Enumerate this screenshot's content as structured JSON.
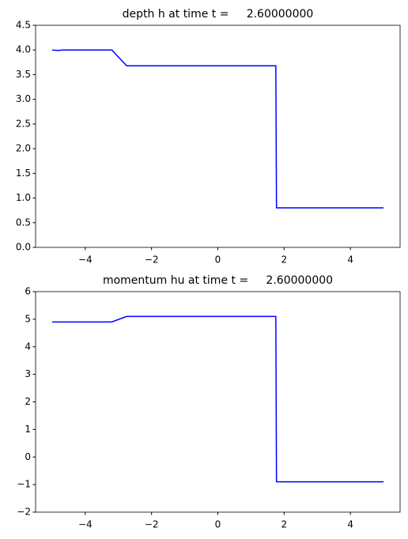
{
  "chart_data": [
    {
      "type": "line",
      "title": "depth h at time t =     2.60000000",
      "x": [
        -5,
        -4.8,
        -4.7,
        -3.2,
        -2.75,
        1.75,
        1.77,
        5
      ],
      "series": [
        {
          "color": "#0000ff",
          "values": [
            4.0,
            3.99,
            4.0,
            4.0,
            3.68,
            3.68,
            0.8,
            0.8
          ]
        }
      ],
      "xlim": [
        -5.5,
        5.5
      ],
      "xticks": [
        {
          "value": -4,
          "label": "−4"
        },
        {
          "value": -2,
          "label": "−2"
        },
        0,
        2,
        4
      ],
      "ylim": [
        0,
        4.5
      ],
      "yticks": [
        {
          "value": 0,
          "label": "0.0"
        },
        0.5,
        {
          "value": 1,
          "label": "1.0"
        },
        1.5,
        {
          "value": 2,
          "label": "2.0"
        },
        2.5,
        {
          "value": 3,
          "label": "3.0"
        },
        3.5,
        {
          "value": 4,
          "label": "4.0"
        },
        4.5
      ]
    },
    {
      "type": "line",
      "title": "momentum hu at time t =     2.60000000",
      "x": [
        -5,
        -4.8,
        -4.7,
        -3.2,
        -2.75,
        1.75,
        1.77,
        5
      ],
      "series": [
        {
          "color": "#0000ff",
          "values": [
            4.9,
            4.9,
            4.9,
            4.9,
            5.1,
            5.1,
            -0.9,
            -0.9
          ]
        }
      ],
      "xlim": [
        -5.5,
        5.5
      ],
      "xticks": [
        {
          "value": -4,
          "label": "−4"
        },
        {
          "value": -2,
          "label": "−2"
        },
        0,
        2,
        4
      ],
      "ylim": [
        -2,
        6
      ],
      "yticks": [
        {
          "value": -2,
          "label": "−2"
        },
        {
          "value": -1,
          "label": "−1"
        },
        0,
        1,
        2,
        3,
        4,
        5,
        6
      ]
    }
  ]
}
